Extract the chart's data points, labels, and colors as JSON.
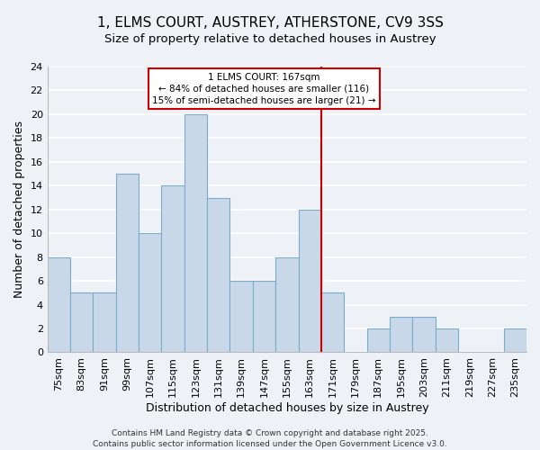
{
  "title": "1, ELMS COURT, AUSTREY, ATHERSTONE, CV9 3SS",
  "subtitle": "Size of property relative to detached houses in Austrey",
  "xlabel": "Distribution of detached houses by size in Austrey",
  "ylabel": "Number of detached properties",
  "bar_labels": [
    "75sqm",
    "83sqm",
    "91sqm",
    "99sqm",
    "107sqm",
    "115sqm",
    "123sqm",
    "131sqm",
    "139sqm",
    "147sqm",
    "155sqm",
    "163sqm",
    "171sqm",
    "179sqm",
    "187sqm",
    "195sqm",
    "203sqm",
    "211sqm",
    "219sqm",
    "227sqm",
    "235sqm"
  ],
  "bar_values": [
    8,
    5,
    5,
    15,
    10,
    14,
    20,
    13,
    6,
    6,
    8,
    12,
    5,
    0,
    2,
    3,
    3,
    2,
    0,
    0,
    2
  ],
  "bar_color": "#c8d8e8",
  "bar_edge_color": "#7aadcc",
  "vline_color": "#cc0000",
  "annotation_title": "1 ELMS COURT: 167sqm",
  "annotation_line1": "← 84% of detached houses are smaller (116)",
  "annotation_line2": "15% of semi-detached houses are larger (21) →",
  "annotation_box_color": "#ffffff",
  "annotation_box_edge_color": "#cc0000",
  "ylim": [
    0,
    24
  ],
  "yticks": [
    0,
    2,
    4,
    6,
    8,
    10,
    12,
    14,
    16,
    18,
    20,
    22,
    24
  ],
  "footer": "Contains HM Land Registry data © Crown copyright and database right 2025.\nContains public sector information licensed under the Open Government Licence v3.0.",
  "bg_color": "#eef2f7",
  "grid_color": "#ffffff",
  "title_fontsize": 11,
  "subtitle_fontsize": 9.5,
  "axis_label_fontsize": 9,
  "tick_fontsize": 8,
  "footer_fontsize": 6.5
}
